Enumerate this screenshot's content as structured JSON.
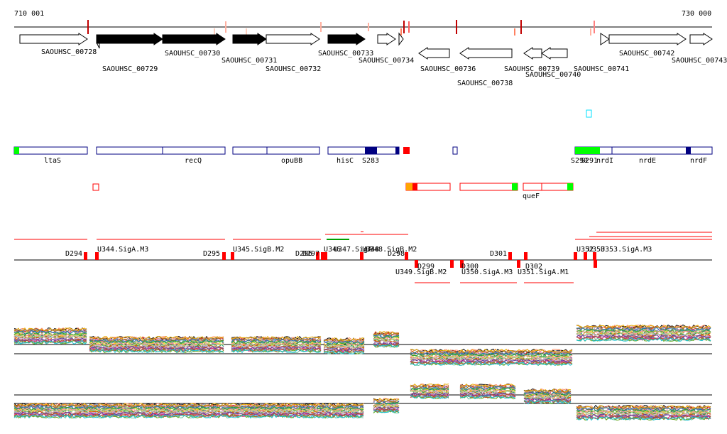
{
  "view": {
    "start_label": "710 001",
    "end_label": "730 000"
  },
  "colors": {
    "gene_fill": "#000000",
    "outline": "#000000",
    "annotation_blue": "#000080",
    "red": "#ff0000",
    "green": "#00ff00",
    "orange": "#ffa500",
    "cyan": "#00e0ff"
  },
  "genes": [
    {
      "label": "SAOUHSC_00728",
      "strand": "+",
      "filled": false
    },
    {
      "label": "SAOUHSC_00729",
      "strand": "-",
      "filled": false
    },
    {
      "label": "SAOUHSC_00730",
      "strand": "+",
      "filled": true
    },
    {
      "label": "SAOUHSC_00731",
      "strand": "+",
      "filled": true
    },
    {
      "label": "SAOUHSC_00732",
      "strand": "+",
      "filled": false
    },
    {
      "label": "SAOUHSC_00733",
      "strand": "+",
      "filled": true
    },
    {
      "label": "SAOUHSC_00734",
      "strand": "+",
      "filled": false
    },
    {
      "label": "SAOUHSC_00736",
      "strand": "-",
      "filled": false
    },
    {
      "label": "SAOUHSC_00738",
      "strand": "-",
      "filled": false
    },
    {
      "label": "SAOUHSC_00739",
      "strand": "-",
      "filled": false
    },
    {
      "label": "SAOUHSC_00740",
      "strand": "-",
      "filled": false
    },
    {
      "label": "SAOUHSC_00741",
      "strand": "+",
      "filled": false
    },
    {
      "label": "SAOUHSC_00742",
      "strand": "+",
      "filled": false
    },
    {
      "label": "SAOUHSC_00743",
      "strand": "+",
      "filled": false
    }
  ],
  "annotations": [
    "ltaS",
    "recQ",
    "opuBB",
    "hisC",
    "S283",
    "S290",
    "S291",
    "nrdI",
    "nrdE",
    "nrdF",
    "queF"
  ],
  "segments": [
    "D294",
    "U344.SigA.M3",
    "D295",
    "U345.SigB.M2",
    "D296",
    "D297",
    "U346",
    "U347.SigA",
    "U348",
    "U348.SigB.M2",
    "D298",
    "U349.SigB.M2",
    "D299",
    "D300",
    "U350.SigA.M3",
    "D301",
    "D302",
    "U351.SigA.M1",
    "U352",
    "U353",
    "U353.SigA.M3"
  ],
  "expression_profiles": {
    "panels": 2,
    "series_count": 30
  }
}
